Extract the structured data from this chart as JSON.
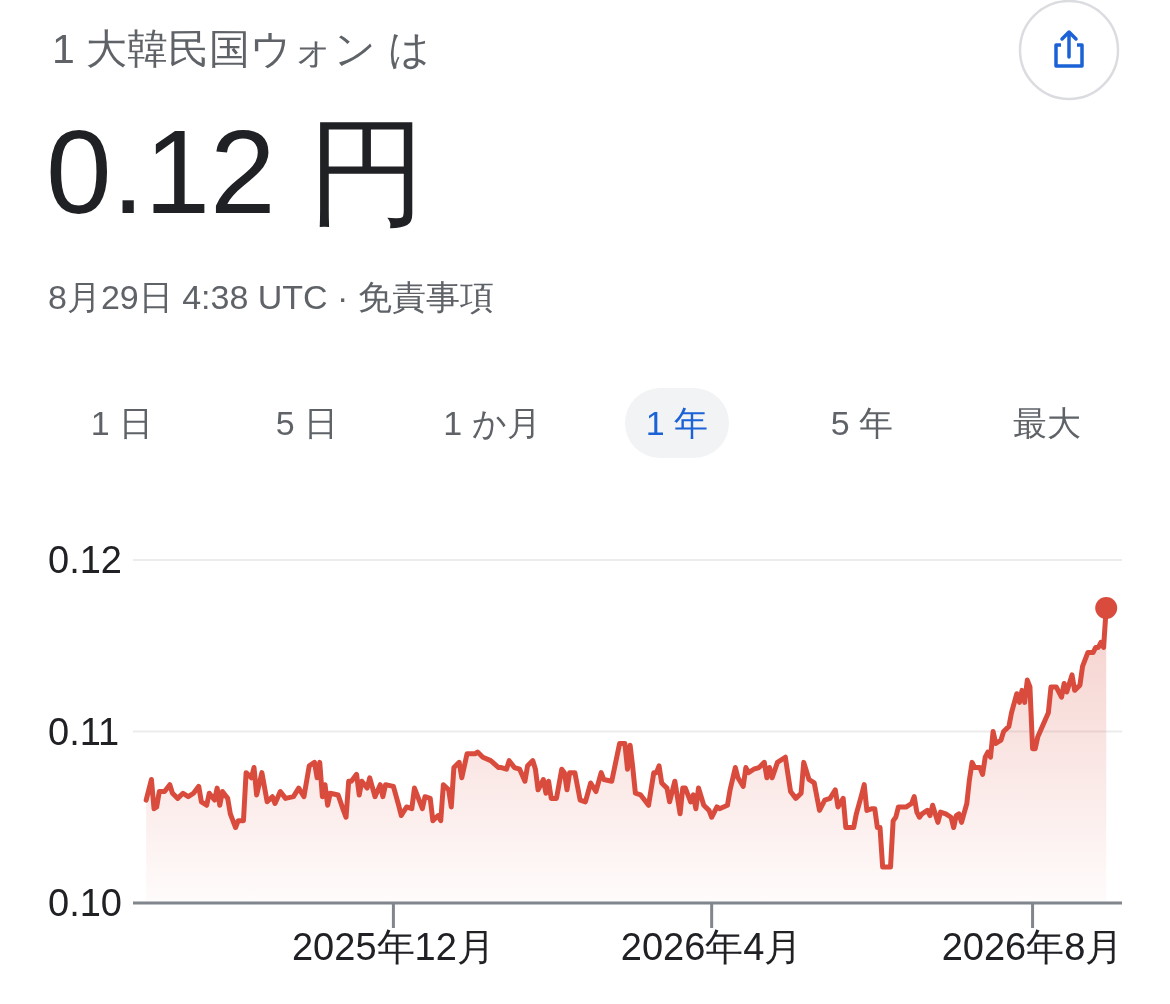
{
  "chart_data": {
    "type": "area",
    "title": "1 大韓民国ウォン は",
    "subtitle": "0.12 円",
    "annotations": [
      "8月29日 4:38 UTC · 免責事項",
      "1 日",
      "5 日",
      "1 か月",
      "1 年",
      "5 年",
      "最大"
    ],
    "xlim": [
      "2025-08-24",
      "2026-09-04"
    ],
    "xticks": [
      {
        "value": "2025-12-01",
        "label": "2025年12月"
      },
      {
        "value": "2026-04-01",
        "label": "2026年4月"
      },
      {
        "value": "2026-08-01",
        "label": "2026年8月"
      }
    ],
    "ylim": [
      0.1,
      0.12
    ],
    "yticks": [
      {
        "value": 0.1,
        "label": "0.10"
      },
      {
        "value": 0.11,
        "label": "0.11"
      },
      {
        "value": 0.12,
        "label": "0.12"
      }
    ],
    "grid": "y",
    "series": [
      {
        "color": "#d94c3d",
        "x": [
          "2025-08-29",
          "2025-08-31",
          "2025-09-01",
          "2025-09-02",
          "2025-09-03",
          "2025-09-05",
          "2025-09-07",
          "2025-09-08",
          "2025-09-10",
          "2025-09-12",
          "2025-09-14",
          "2025-09-16",
          "2025-09-18",
          "2025-09-19",
          "2025-09-21",
          "2025-09-22",
          "2025-09-24",
          "2025-09-25",
          "2025-09-26",
          "2025-09-27",
          "2025-09-29",
          "2025-09-30",
          "2025-10-02",
          "2025-10-03",
          "2025-10-05",
          "2025-10-06",
          "2025-10-08",
          "2025-10-09",
          "2025-10-10",
          "2025-10-12",
          "2025-10-14",
          "2025-10-16",
          "2025-10-17",
          "2025-10-19",
          "2025-10-21",
          "2025-10-24",
          "2025-10-26",
          "2025-10-28",
          "2025-10-30",
          "2025-11-01",
          "2025-11-02",
          "2025-11-03",
          "2025-11-04",
          "2025-11-05",
          "2025-11-06",
          "2025-11-07",
          "2025-11-10",
          "2025-11-12",
          "2025-11-13",
          "2025-11-14",
          "2025-11-15",
          "2025-11-17",
          "2025-11-18",
          "2025-11-19",
          "2025-11-21",
          "2025-11-22",
          "2025-11-24",
          "2025-11-26",
          "2025-11-27",
          "2025-11-28",
          "2025-12-01",
          "2025-12-03",
          "2025-12-04",
          "2025-12-06",
          "2025-12-08",
          "2025-12-09",
          "2025-12-10",
          "2025-12-12",
          "2025-12-13",
          "2025-12-15",
          "2025-12-16",
          "2025-12-18",
          "2025-12-19",
          "2025-12-20",
          "2025-12-22",
          "2025-12-23",
          "2025-12-24",
          "2025-12-26",
          "2025-12-27",
          "2025-12-29",
          "2026-01-01",
          "2026-01-02",
          "2026-01-04",
          "2026-01-07",
          "2026-01-10",
          "2026-01-11",
          "2026-01-13",
          "2026-01-14",
          "2026-01-16",
          "2026-01-18",
          "2026-01-20",
          "2026-01-21",
          "2026-01-23",
          "2026-01-24",
          "2026-01-25",
          "2026-01-27",
          "2026-01-28",
          "2026-01-29",
          "2026-01-30",
          "2026-02-01",
          "2026-02-03",
          "2026-02-04",
          "2026-02-05",
          "2026-02-06",
          "2026-02-08",
          "2026-02-10",
          "2026-02-12",
          "2026-02-14",
          "2026-02-16",
          "2026-02-18",
          "2026-02-19",
          "2026-02-22",
          "2026-02-25",
          "2026-02-27",
          "2026-02-28",
          "2026-03-01",
          "2026-03-02",
          "2026-03-03",
          "2026-03-05",
          "2026-03-07",
          "2026-03-08",
          "2026-03-10",
          "2026-03-11",
          "2026-03-12",
          "2026-03-13",
          "2026-03-15",
          "2026-03-16",
          "2026-03-18",
          "2026-03-20",
          "2026-03-21",
          "2026-03-22",
          "2026-03-24",
          "2026-03-25",
          "2026-03-26",
          "2026-03-27",
          "2026-03-29",
          "2026-03-31",
          "2026-04-01",
          "2026-04-03",
          "2026-04-04",
          "2026-04-07",
          "2026-04-08",
          "2026-04-10",
          "2026-04-11",
          "2026-04-13",
          "2026-04-14",
          "2026-04-15",
          "2026-04-17",
          "2026-04-19",
          "2026-04-21",
          "2026-04-22",
          "2026-04-23",
          "2026-04-24",
          "2026-04-26",
          "2026-04-29",
          "2026-05-01",
          "2026-05-03",
          "2026-05-05",
          "2026-05-06",
          "2026-05-08",
          "2026-05-10",
          "2026-05-12",
          "2026-05-14",
          "2026-05-16",
          "2026-05-18",
          "2026-05-19",
          "2026-05-21",
          "2026-05-22",
          "2026-05-25",
          "2026-05-26",
          "2026-05-28",
          "2026-05-29",
          "2026-05-30",
          "2026-06-01",
          "2026-06-02",
          "2026-06-03",
          "2026-06-04",
          "2026-06-05",
          "2026-06-08",
          "2026-06-09",
          "2026-06-10",
          "2026-06-11",
          "2026-06-14",
          "2026-06-16",
          "2026-06-17",
          "2026-06-18",
          "2026-06-19",
          "2026-06-20",
          "2026-06-22",
          "2026-06-23",
          "2026-06-24",
          "2026-06-26",
          "2026-06-27",
          "2026-06-29",
          "2026-07-01",
          "2026-07-02",
          "2026-07-03",
          "2026-07-04",
          "2026-07-05",
          "2026-07-07",
          "2026-07-08",
          "2026-07-09",
          "2026-07-10",
          "2026-07-12",
          "2026-07-13",
          "2026-07-14",
          "2026-07-15",
          "2026-07-16",
          "2026-07-17",
          "2026-07-18",
          "2026-07-20",
          "2026-07-21",
          "2026-07-23",
          "2026-07-24",
          "2026-07-26",
          "2026-07-27",
          "2026-07-28",
          "2026-07-29",
          "2026-07-30",
          "2026-07-31",
          "2026-08-01",
          "2026-08-02",
          "2026-08-03",
          "2026-08-05",
          "2026-08-07",
          "2026-08-08",
          "2026-08-10",
          "2026-08-12",
          "2026-08-13",
          "2026-08-14",
          "2026-08-15",
          "2026-08-16",
          "2026-08-17",
          "2026-08-19",
          "2026-08-20",
          "2026-08-22",
          "2026-08-24",
          "2026-08-25",
          "2026-08-26",
          "2026-08-27",
          "2026-08-28",
          "2026-08-29"
        ],
        "values": [
          0.106,
          0.1072,
          0.1055,
          0.1056,
          0.1065,
          0.1065,
          0.1069,
          0.1064,
          0.1061,
          0.1064,
          0.1062,
          0.1064,
          0.1068,
          0.1059,
          0.1057,
          0.1064,
          0.106,
          0.1067,
          0.1057,
          0.1065,
          0.1061,
          0.1052,
          0.1044,
          0.1048,
          0.1048,
          0.1076,
          0.1073,
          0.1079,
          0.1063,
          0.1076,
          0.1059,
          0.1062,
          0.1058,
          0.1065,
          0.1061,
          0.1062,
          0.1067,
          0.1062,
          0.108,
          0.1082,
          0.1073,
          0.1082,
          0.1062,
          0.1069,
          0.1057,
          0.1064,
          0.1063,
          0.1054,
          0.105,
          0.1071,
          0.1071,
          0.1075,
          0.1063,
          0.1071,
          0.1067,
          0.1073,
          0.1062,
          0.1069,
          0.1062,
          0.1069,
          0.1068,
          0.1057,
          0.1051,
          0.1056,
          0.1055,
          0.1067,
          0.1063,
          0.1055,
          0.1062,
          0.1061,
          0.1048,
          0.1051,
          0.1048,
          0.1069,
          0.1066,
          0.1056,
          0.1079,
          0.1082,
          0.1073,
          0.1087,
          0.1087,
          0.1088,
          0.1085,
          0.1083,
          0.1079,
          0.1079,
          0.1078,
          0.1083,
          0.1079,
          0.1078,
          0.1071,
          0.108,
          0.1083,
          0.1078,
          0.1066,
          0.1072,
          0.1064,
          0.1071,
          0.1061,
          0.1061,
          0.1078,
          0.1076,
          0.1066,
          0.1076,
          0.1076,
          0.106,
          0.1059,
          0.107,
          0.1065,
          0.1076,
          0.1072,
          0.1071,
          0.1093,
          0.1093,
          0.1078,
          0.1092,
          0.1079,
          0.1064,
          0.1063,
          0.1059,
          0.1057,
          0.1076,
          0.1076,
          0.108,
          0.107,
          0.1067,
          0.1059,
          0.1071,
          0.1052,
          0.1067,
          0.1067,
          0.1059,
          0.1063,
          0.1055,
          0.1067,
          0.1057,
          0.1054,
          0.105,
          0.1056,
          0.1055,
          0.1057,
          0.1066,
          0.1079,
          0.1073,
          0.1068,
          0.1079,
          0.1076,
          0.1078,
          0.1079,
          0.1082,
          0.1073,
          0.1079,
          0.1073,
          0.1082,
          0.1085,
          0.1065,
          0.1061,
          0.1064,
          0.1082,
          0.1072,
          0.107,
          0.1054,
          0.106,
          0.1061,
          0.1066,
          0.1056,
          0.1061,
          0.1044,
          0.1044,
          0.1052,
          0.1063,
          0.1069,
          0.1054,
          0.1055,
          0.1055,
          0.1044,
          0.1044,
          0.1021,
          0.1021,
          0.1048,
          0.105,
          0.1056,
          0.1056,
          0.1058,
          0.1062,
          0.1053,
          0.105,
          0.1052,
          0.1054,
          0.1051,
          0.1057,
          0.1047,
          0.1053,
          0.1052,
          0.105,
          0.1044,
          0.1051,
          0.1052,
          0.1047,
          0.1058,
          0.1072,
          0.1082,
          0.1079,
          0.1079,
          0.1075,
          0.1085,
          0.1088,
          0.1085,
          0.11,
          0.1093,
          0.1095,
          0.11,
          0.1103,
          0.1111,
          0.1122,
          0.1117,
          0.1124,
          0.1117,
          0.113,
          0.1126,
          0.109,
          0.109,
          0.1097,
          0.1104,
          0.1111,
          0.1126,
          0.1126,
          0.112,
          0.1128,
          0.1123,
          0.1128,
          0.1133,
          0.1124,
          0.1127,
          0.1138,
          0.1146,
          0.1146,
          0.1149,
          0.1149,
          0.1152,
          0.1149,
          0.1172
        ]
      },
      {
        "type": "scatter",
        "color": "#d94c3d",
        "x": [
          "2026-08-29"
        ],
        "values": [
          0.1172
        ]
      }
    ]
  }
}
